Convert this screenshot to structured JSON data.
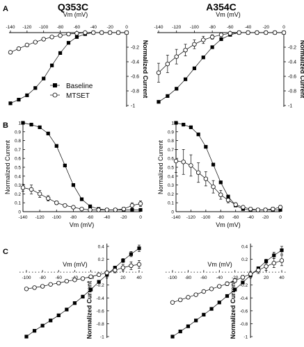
{
  "titles": {
    "left": "Q353C",
    "right": "A354C"
  },
  "panel_letters": {
    "a": "A",
    "b": "B",
    "c": "C"
  },
  "legend": {
    "baseline": "Baseline",
    "mtset": "MTSET"
  },
  "chart_data": [
    {
      "id": "A-left",
      "type": "scatter",
      "panel": "A",
      "column": "Q353C",
      "xlabel": "Vm (mV)",
      "ylabel": "Normalized Current",
      "xlim": [
        -140,
        0
      ],
      "ylim": [
        -1,
        0
      ],
      "xticks": [
        -140,
        -120,
        -100,
        -80,
        -60,
        -40,
        -20,
        0
      ],
      "yticks": [
        0,
        -0.2,
        -0.4,
        -0.6,
        -0.8,
        -1
      ],
      "series": [
        {
          "name": "Baseline",
          "marker": "filled-square",
          "x": [
            -140,
            -130,
            -120,
            -110,
            -100,
            -90,
            -80,
            -70,
            -60,
            -50,
            -40,
            -30,
            -20,
            -10,
            0
          ],
          "y": [
            -0.97,
            -0.92,
            -0.86,
            -0.76,
            -0.63,
            -0.45,
            -0.28,
            -0.14,
            -0.06,
            -0.02,
            0,
            0,
            0,
            0,
            0
          ]
        },
        {
          "name": "MTSET",
          "marker": "open-circle",
          "x": [
            -140,
            -130,
            -120,
            -110,
            -100,
            -90,
            -80,
            -70,
            -60,
            -50,
            -40,
            -30,
            -20,
            -10,
            0
          ],
          "y": [
            -0.27,
            -0.22,
            -0.17,
            -0.13,
            -0.09,
            -0.06,
            -0.04,
            -0.02,
            -0.01,
            0,
            0,
            0,
            0,
            0,
            0
          ]
        }
      ]
    },
    {
      "id": "A-right",
      "type": "scatter",
      "panel": "A",
      "column": "A354C",
      "xlabel": "Vm (mV)",
      "ylabel": "Normalized Current",
      "xlim": [
        -140,
        0
      ],
      "ylim": [
        -1,
        0
      ],
      "xticks": [
        -140,
        -120,
        -100,
        -80,
        -60,
        -40,
        -20,
        0
      ],
      "yticks": [
        0,
        -0.2,
        -0.4,
        -0.6,
        -0.8,
        -1
      ],
      "series": [
        {
          "name": "Baseline",
          "marker": "filled-square",
          "x": [
            -140,
            -130,
            -120,
            -110,
            -100,
            -90,
            -80,
            -70,
            -60,
            -50,
            -40,
            -30,
            -20,
            -10,
            0
          ],
          "y": [
            -0.95,
            -0.87,
            -0.77,
            -0.64,
            -0.49,
            -0.34,
            -0.2,
            -0.09,
            -0.03,
            0,
            0,
            0,
            0,
            0,
            0
          ]
        },
        {
          "name": "MTSET",
          "marker": "open-circle",
          "x": [
            -140,
            -130,
            -120,
            -110,
            -100,
            -90,
            -80,
            -70,
            -60,
            -50,
            -40,
            -30,
            -20,
            -10,
            0
          ],
          "y": [
            -0.55,
            -0.43,
            -0.33,
            -0.24,
            -0.16,
            -0.1,
            -0.06,
            -0.03,
            -0.01,
            0,
            0,
            0,
            0,
            0,
            0
          ],
          "err": [
            0.13,
            0.12,
            0.1,
            0.08,
            0.06,
            0.05,
            0.03,
            0.02,
            0.01,
            0.01,
            0,
            0,
            0,
            0,
            0
          ]
        }
      ]
    },
    {
      "id": "B-left",
      "type": "scatter",
      "panel": "B",
      "column": "Q353C",
      "xlabel": "Vm (mV)",
      "ylabel": "Normalized Current",
      "xlim": [
        -140,
        0
      ],
      "ylim": [
        0,
        1
      ],
      "xticks": [
        -140,
        -120,
        -100,
        -80,
        -60,
        -40,
        -20,
        0
      ],
      "yticks": [
        0,
        0.1,
        0.2,
        0.3,
        0.4,
        0.5,
        0.6,
        0.7,
        0.8,
        0.9,
        1
      ],
      "series": [
        {
          "name": "Baseline",
          "marker": "filled-square",
          "x": [
            -140,
            -130,
            -120,
            -110,
            -100,
            -90,
            -80,
            -70,
            -60,
            -50,
            -40,
            -30,
            -20,
            -10,
            0
          ],
          "y": [
            1.0,
            0.98,
            0.95,
            0.88,
            0.74,
            0.52,
            0.3,
            0.14,
            0.06,
            0.03,
            0.02,
            0.02,
            0.02,
            0.02,
            0.02
          ]
        },
        {
          "name": "MTSET",
          "marker": "open-circle",
          "x": [
            -140,
            -130,
            -120,
            -110,
            -100,
            -90,
            -80,
            -70,
            -60,
            -50,
            -40,
            -30,
            -20,
            -10,
            0
          ],
          "y": [
            0.27,
            0.25,
            0.2,
            0.15,
            0.1,
            0.07,
            0.05,
            0.03,
            0.02,
            0.02,
            0.02,
            0.02,
            0.03,
            0.07,
            0.09
          ],
          "err": [
            0.04,
            0.05,
            0.04,
            0.03,
            0.02,
            0.01,
            0.01,
            0.01,
            0.01,
            0.01,
            0.01,
            0.01,
            0.02,
            0.03,
            0.03
          ]
        }
      ]
    },
    {
      "id": "B-right",
      "type": "scatter",
      "panel": "B",
      "column": "A354C",
      "xlabel": "Vm (mV)",
      "ylabel": "Normalized Current",
      "xlim": [
        -140,
        0
      ],
      "ylim": [
        0,
        1
      ],
      "xticks": [
        -140,
        -120,
        -100,
        -80,
        -60,
        -40,
        -20,
        0
      ],
      "yticks": [
        0,
        0.1,
        0.2,
        0.3,
        0.4,
        0.5,
        0.6,
        0.7,
        0.8,
        0.9,
        1
      ],
      "series": [
        {
          "name": "Baseline",
          "marker": "filled-square",
          "x": [
            -140,
            -130,
            -120,
            -110,
            -100,
            -90,
            -80,
            -70,
            -60,
            -50,
            -40,
            -30,
            -20,
            -10,
            0
          ],
          "y": [
            1.0,
            0.98,
            0.95,
            0.87,
            0.73,
            0.53,
            0.33,
            0.17,
            0.07,
            0.03,
            0.02,
            0.02,
            0.02,
            0.02,
            0.02
          ]
        },
        {
          "name": "MTSET",
          "marker": "open-circle",
          "x": [
            -140,
            -130,
            -120,
            -110,
            -100,
            -90,
            -80,
            -70,
            -60,
            -50,
            -40,
            -30,
            -20,
            -10,
            0
          ],
          "y": [
            0.57,
            0.56,
            0.52,
            0.44,
            0.37,
            0.28,
            0.19,
            0.13,
            0.08,
            0.05,
            0.03,
            0.02,
            0.02,
            0.03,
            0.05
          ],
          "err": [
            0.13,
            0.14,
            0.12,
            0.11,
            0.08,
            0.07,
            0.05,
            0.03,
            0.02,
            0.01,
            0.01,
            0.01,
            0.02,
            0.02,
            0.02
          ]
        }
      ]
    },
    {
      "id": "C-left",
      "type": "scatter",
      "panel": "C",
      "column": "Q353C",
      "xlabel": "Vm (mV)",
      "ylabel": "Normalized Current",
      "xlim": [
        -100,
        40
      ],
      "ylim": [
        -1,
        0.4
      ],
      "xticks": [
        -100,
        -80,
        -60,
        -40,
        -20,
        0,
        20,
        40
      ],
      "yticks": [
        0.4,
        0.2,
        0,
        -0.2,
        -0.4,
        -0.6,
        -0.8,
        -1
      ],
      "series": [
        {
          "name": "Baseline",
          "marker": "filled-square",
          "x": [
            -100,
            -90,
            -80,
            -70,
            -60,
            -50,
            -40,
            -30,
            -20,
            -10,
            0,
            10,
            20,
            30,
            40
          ],
          "y": [
            -1.0,
            -0.91,
            -0.83,
            -0.75,
            -0.67,
            -0.58,
            -0.48,
            -0.38,
            -0.27,
            -0.15,
            -0.04,
            0.07,
            0.18,
            0.28,
            0.37
          ],
          "err": [
            0.02,
            0.02,
            0.02,
            0.02,
            0.02,
            0.02,
            0.02,
            0.02,
            0.02,
            0.02,
            0.02,
            0.02,
            0.03,
            0.04,
            0.05
          ]
        },
        {
          "name": "MTSET",
          "marker": "open-circle",
          "x": [
            -100,
            -90,
            -80,
            -70,
            -60,
            -50,
            -40,
            -30,
            -20,
            -10,
            0,
            10,
            20,
            30,
            40
          ],
          "y": [
            -0.26,
            -0.24,
            -0.22,
            -0.19,
            -0.17,
            -0.14,
            -0.12,
            -0.1,
            -0.07,
            -0.04,
            -0.01,
            0.03,
            0.07,
            0.1,
            0.12
          ],
          "err": [
            0.01,
            0.01,
            0.01,
            0.01,
            0.01,
            0.01,
            0.02,
            0.02,
            0.02,
            0.02,
            0.03,
            0.04,
            0.05,
            0.06,
            0.06
          ]
        }
      ]
    },
    {
      "id": "C-right",
      "type": "scatter",
      "panel": "C",
      "column": "A354C",
      "xlabel": "Vm (mV)",
      "ylabel": "Normalized Current",
      "xlim": [
        -100,
        40
      ],
      "ylim": [
        -1,
        0.4
      ],
      "xticks": [
        -100,
        -80,
        -60,
        -40,
        -20,
        0,
        20,
        40
      ],
      "yticks": [
        0.4,
        0.2,
        0,
        -0.2,
        -0.4,
        -0.6,
        -0.8,
        -1
      ],
      "series": [
        {
          "name": "Baseline",
          "marker": "filled-square",
          "x": [
            -100,
            -90,
            -80,
            -70,
            -60,
            -50,
            -40,
            -30,
            -20,
            -10,
            0,
            10,
            20,
            30,
            40
          ],
          "y": [
            -1.0,
            -0.92,
            -0.84,
            -0.75,
            -0.66,
            -0.57,
            -0.47,
            -0.37,
            -0.27,
            -0.16,
            -0.05,
            0.06,
            0.17,
            0.26,
            0.34
          ],
          "err": [
            0.02,
            0.02,
            0.02,
            0.02,
            0.02,
            0.02,
            0.02,
            0.02,
            0.02,
            0.02,
            0.02,
            0.02,
            0.03,
            0.05,
            0.06
          ]
        },
        {
          "name": "MTSET",
          "marker": "open-circle",
          "x": [
            -100,
            -90,
            -80,
            -70,
            -60,
            -50,
            -40,
            -30,
            -20,
            -10,
            0,
            10,
            20,
            30,
            40
          ],
          "y": [
            -0.47,
            -0.43,
            -0.39,
            -0.35,
            -0.3,
            -0.26,
            -0.22,
            -0.18,
            -0.13,
            -0.08,
            -0.03,
            0.03,
            0.09,
            0.14,
            0.18
          ],
          "err": [
            0.02,
            0.02,
            0.02,
            0.02,
            0.02,
            0.02,
            0.02,
            0.03,
            0.03,
            0.03,
            0.04,
            0.05,
            0.06,
            0.07,
            0.08
          ]
        }
      ]
    }
  ]
}
